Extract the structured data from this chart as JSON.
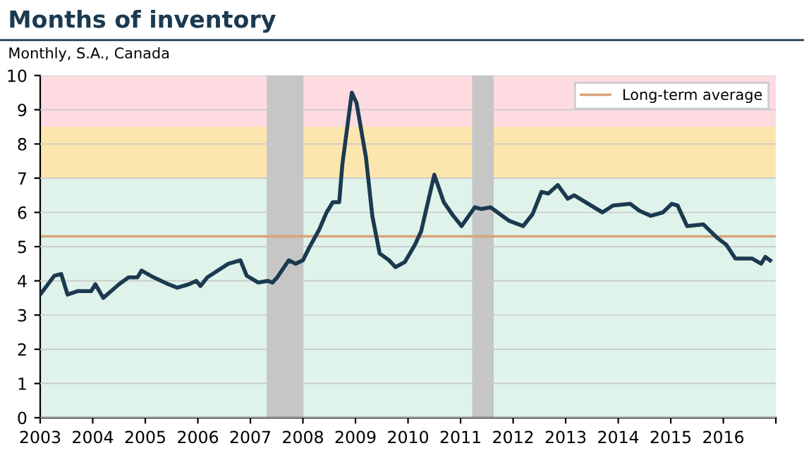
{
  "chart_data": {
    "type": "line",
    "title": "Months of inventory",
    "subtitle": "Monthly, S.A., Canada",
    "xlim": [
      2003,
      2017
    ],
    "xticks": [
      {
        "value": 2003,
        "label": "2003"
      },
      {
        "value": 2004,
        "label": "2004"
      },
      {
        "value": 2005,
        "label": "2005"
      },
      {
        "value": 2006,
        "label": "2006"
      },
      {
        "value": 2007,
        "label": "2007"
      },
      {
        "value": 2008,
        "label": "2008"
      },
      {
        "value": 2009,
        "label": "2009"
      },
      {
        "value": 2010,
        "label": "2010"
      },
      {
        "value": 2011,
        "label": "2011"
      },
      {
        "value": 2012,
        "label": "2012"
      },
      {
        "value": 2013,
        "label": "2013"
      },
      {
        "value": 2014,
        "label": "2014"
      },
      {
        "value": 2015,
        "label": "2015"
      },
      {
        "value": 2016,
        "label": "2016"
      },
      {
        "value": 2017,
        "label": null
      }
    ],
    "ylim": [
      0,
      10
    ],
    "yticks": [
      0,
      1,
      2,
      3,
      4,
      5,
      6,
      7,
      8,
      9,
      10
    ],
    "grid": "y",
    "legend": "top right",
    "series": [
      {
        "color": "#1b3a50",
        "x": [
          2003.0,
          2003.27,
          2003.4,
          2003.52,
          2003.72,
          2003.97,
          2004.05,
          2004.2,
          2004.5,
          2004.68,
          2004.85,
          2004.93,
          2005.16,
          2005.44,
          2005.61,
          2005.83,
          2005.97,
          2006.05,
          2006.18,
          2006.58,
          2006.81,
          2006.93,
          2007.15,
          2007.33,
          2007.42,
          2007.51,
          2007.73,
          2007.86,
          2008.0,
          2008.13,
          2008.31,
          2008.45,
          2008.57,
          2008.69,
          2008.75,
          2008.93,
          2009.02,
          2009.2,
          2009.32,
          2009.46,
          2009.64,
          2009.76,
          2009.94,
          2010.13,
          2010.25,
          2010.5,
          2010.68,
          2010.86,
          2011.02,
          2011.27,
          2011.39,
          2011.57,
          2011.93,
          2012.19,
          2012.37,
          2012.54,
          2012.67,
          2012.85,
          2013.04,
          2013.16,
          2013.7,
          2013.9,
          2014.23,
          2014.4,
          2014.62,
          2014.85,
          2015.02,
          2015.13,
          2015.31,
          2015.62,
          2015.89,
          2016.06,
          2016.23,
          2016.55,
          2016.72,
          2016.8,
          2016.89
        ],
        "values": [
          3.6,
          4.15,
          4.2,
          3.6,
          3.7,
          3.7,
          3.9,
          3.5,
          3.9,
          4.1,
          4.1,
          4.3,
          4.1,
          3.9,
          3.8,
          3.9,
          4.0,
          3.85,
          4.1,
          4.5,
          4.6,
          4.15,
          3.95,
          4.0,
          3.95,
          4.1,
          4.6,
          4.5,
          4.6,
          5.0,
          5.5,
          6.0,
          6.3,
          6.3,
          7.4,
          9.5,
          9.2,
          7.6,
          5.9,
          4.8,
          4.6,
          4.4,
          4.55,
          5.05,
          5.45,
          7.1,
          6.3,
          5.9,
          5.6,
          6.15,
          6.1,
          6.15,
          5.75,
          5.6,
          5.95,
          6.6,
          6.55,
          6.8,
          6.4,
          6.5,
          6.0,
          6.2,
          6.25,
          6.05,
          5.9,
          6.0,
          6.25,
          6.2,
          5.6,
          5.65,
          5.25,
          5.05,
          4.65,
          4.65,
          4.5,
          4.7,
          4.6
        ]
      }
    ],
    "ref_lines": [
      {
        "axis": "y",
        "value": 5.3,
        "label": "Long-term average",
        "color": "#d9a27a"
      }
    ],
    "bands": [
      {
        "axis": "y",
        "from": 8.5,
        "to": 10,
        "color": "#fddbe0"
      },
      {
        "axis": "y",
        "from": 7,
        "to": 8.5,
        "color": "#fde6ad"
      },
      {
        "axis": "y",
        "from": 0,
        "to": 7,
        "color": "#dff3ea"
      },
      {
        "axis": "x",
        "from": 2007.31,
        "to": 2008.01,
        "color": "#c6c6c6"
      },
      {
        "axis": "x",
        "from": 2011.22,
        "to": 2011.63,
        "color": "#c6c6c6"
      }
    ]
  }
}
